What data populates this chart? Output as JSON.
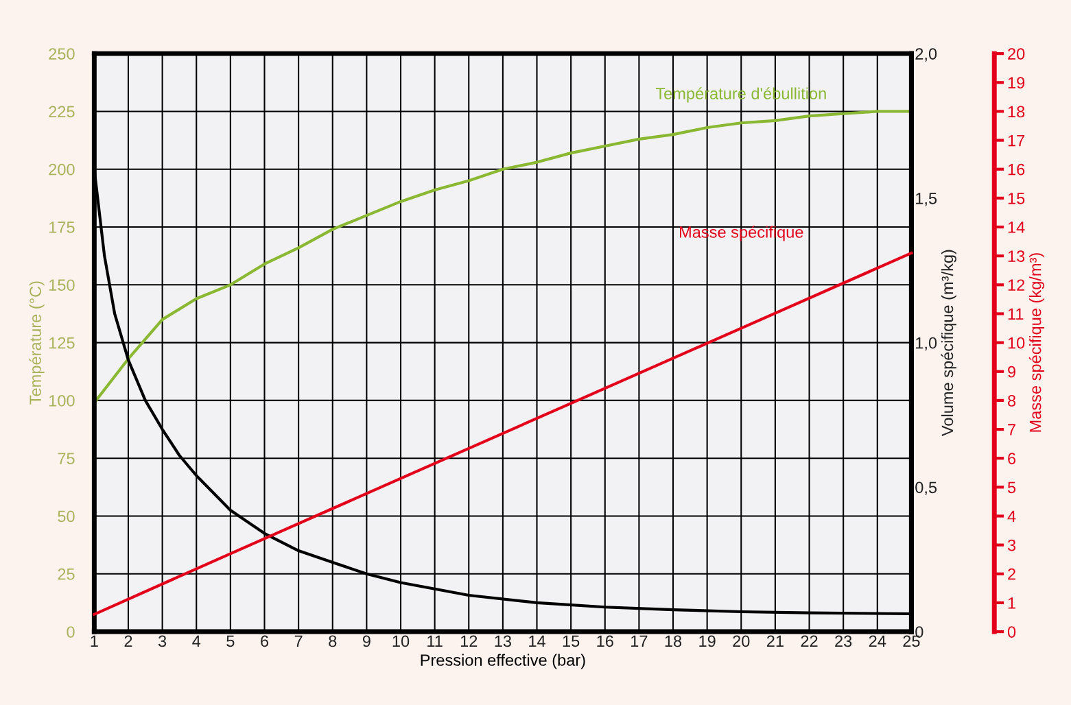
{
  "chart_data": {
    "type": "line",
    "xlabel": "Pression effective (bar)",
    "ylabel": "Température (°C)",
    "y2label": "Volume spécifique (m³/kg)",
    "y3label": "Masse spécifique (kg/m³)",
    "xlim": [
      1,
      25
    ],
    "xticks": [
      1,
      2,
      3,
      4,
      5,
      6,
      7,
      8,
      9,
      10,
      11,
      12,
      13,
      14,
      15,
      16,
      17,
      18,
      19,
      20,
      21,
      22,
      23,
      24,
      25
    ],
    "ylim": [
      0,
      250
    ],
    "yticks": [
      0,
      25,
      50,
      75,
      100,
      125,
      150,
      175,
      200,
      225,
      250
    ],
    "y2lim": [
      0,
      2.0
    ],
    "y2ticks": [
      0,
      {
        "value": 0.5,
        "label": "0,5"
      },
      {
        "value": 1.0,
        "label": "1,0"
      },
      {
        "value": 1.5,
        "label": "1,5"
      },
      {
        "value": 2.0,
        "label": "2,0"
      }
    ],
    "y3lim": [
      0,
      20
    ],
    "y3ticks": [
      0,
      1,
      2,
      3,
      4,
      5,
      6,
      7,
      8,
      9,
      10,
      11,
      12,
      13,
      14,
      15,
      16,
      17,
      18,
      19,
      20
    ],
    "grid": true,
    "legend": false,
    "marker": "none",
    "line_style": "solid",
    "series": [
      {
        "name": "Température d'ébullition",
        "color": "#8ab833",
        "x": [
          1,
          2,
          3,
          4,
          5,
          6,
          7,
          8,
          9,
          10,
          11,
          12,
          13,
          14,
          15,
          16,
          17,
          18,
          19,
          20,
          21,
          22,
          23,
          24,
          25
        ],
        "values": [
          99,
          118,
          135,
          144,
          150,
          159,
          166,
          174,
          180,
          186,
          191,
          195,
          200,
          203,
          207,
          210,
          213,
          215,
          218,
          220,
          221,
          223,
          224,
          225,
          225
        ]
      },
      {
        "color": "#000000",
        "axis": "y2",
        "x": [
          1,
          1.3,
          1.6,
          2,
          2.5,
          3,
          3.5,
          4,
          5,
          6,
          7,
          8,
          9,
          10,
          12,
          14,
          16,
          18,
          20,
          22,
          25
        ],
        "values": [
          1.6,
          1.3,
          1.1,
          0.94,
          0.8,
          0.7,
          0.61,
          0.54,
          0.42,
          0.34,
          0.28,
          0.24,
          0.2,
          0.17,
          0.126,
          0.1,
          0.085,
          0.076,
          0.069,
          0.065,
          0.062
        ]
      },
      {
        "name": "Masse spécifique",
        "color": "#e2001a",
        "axis": "y3",
        "x": [
          1,
          5,
          10,
          15,
          20,
          25
        ],
        "values": [
          0.6,
          2.7,
          5.3,
          7.9,
          10.5,
          13.1
        ]
      }
    ]
  }
}
